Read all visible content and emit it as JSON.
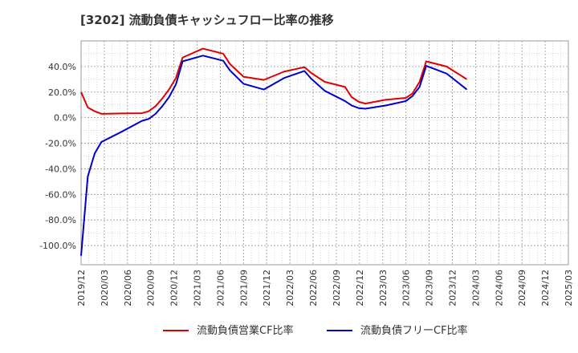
{
  "chart_data": {
    "type": "line",
    "title": "[3202]  流動負債キャッシュフロー比率の推移",
    "xlabel": "",
    "ylabel": "",
    "ylim": [
      -115,
      60
    ],
    "yticks": [
      40,
      20,
      0,
      -20,
      -40,
      -60,
      -80,
      -100
    ],
    "ytick_labels": [
      "40.0%",
      "20.0%",
      "0.0%",
      "-20.0%",
      "-40.0%",
      "-60.0%",
      "-80.0%",
      "-100.0%"
    ],
    "xlim": [
      0,
      24
    ],
    "xtick_labels": [
      "2019/12",
      "2020/03",
      "2020/06",
      "2020/09",
      "2020/12",
      "2021/03",
      "2021/06",
      "2021/09",
      "2021/12",
      "2022/03",
      "2022/06",
      "2022/09",
      "2022/12",
      "2023/03",
      "2023/06",
      "2023/09",
      "2023/12",
      "2024/03",
      "2024/06",
      "2024/09",
      "2024/12",
      "2025/03"
    ],
    "grid": true,
    "legend_position": "bottom",
    "series": [
      {
        "name": "流動負債営業CF比率",
        "color": "#e00000",
        "points": [
          [
            0,
            20
          ],
          [
            0.33,
            8
          ],
          [
            0.67,
            5
          ],
          [
            1,
            3
          ],
          [
            2,
            3.3
          ],
          [
            3,
            3.5
          ],
          [
            3.33,
            5
          ],
          [
            3.67,
            9
          ],
          [
            4,
            15
          ],
          [
            4.33,
            22
          ],
          [
            4.67,
            31
          ],
          [
            5,
            47
          ],
          [
            6,
            54
          ],
          [
            7,
            50
          ],
          [
            7.33,
            42
          ],
          [
            8,
            32
          ],
          [
            9,
            29.5
          ],
          [
            10,
            36
          ],
          [
            11,
            39.5
          ],
          [
            11.33,
            35
          ],
          [
            12,
            28
          ],
          [
            13,
            24
          ],
          [
            13.33,
            16
          ],
          [
            13.67,
            12.5
          ],
          [
            14,
            11
          ],
          [
            15,
            14
          ],
          [
            16,
            15.5
          ],
          [
            16.33,
            19
          ],
          [
            16.67,
            28
          ],
          [
            17,
            44
          ],
          [
            18,
            40
          ],
          [
            19,
            30
          ]
        ]
      },
      {
        "name": "流動負債フリーCF比率",
        "color": "#0000cc",
        "points": [
          [
            0,
            -108
          ],
          [
            0.33,
            -46
          ],
          [
            0.67,
            -28
          ],
          [
            1,
            -19
          ],
          [
            2,
            -11
          ],
          [
            3,
            -2.5
          ],
          [
            3.33,
            -1
          ],
          [
            3.67,
            3
          ],
          [
            4,
            9
          ],
          [
            4.33,
            16
          ],
          [
            4.67,
            26
          ],
          [
            5,
            44
          ],
          [
            6,
            48.5
          ],
          [
            7,
            44.5
          ],
          [
            7.33,
            37
          ],
          [
            8,
            26.5
          ],
          [
            9,
            22
          ],
          [
            10,
            31
          ],
          [
            11,
            36.5
          ],
          [
            11.33,
            30.5
          ],
          [
            12,
            21
          ],
          [
            13,
            13
          ],
          [
            13.33,
            9.5
          ],
          [
            13.67,
            7.5
          ],
          [
            14,
            7
          ],
          [
            15,
            9.5
          ],
          [
            16,
            13
          ],
          [
            16.33,
            17
          ],
          [
            16.67,
            24
          ],
          [
            17,
            40.5
          ],
          [
            18,
            34.5
          ],
          [
            19,
            22
          ]
        ]
      }
    ]
  }
}
